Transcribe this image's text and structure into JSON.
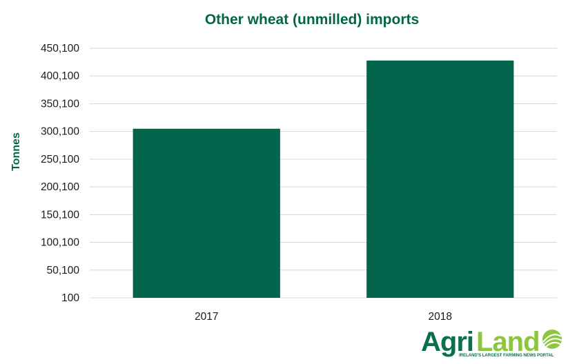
{
  "chart_data": {
    "type": "bar",
    "title": "Other wheat (unmilled) imports",
    "xlabel": "",
    "ylabel": "Tonnes",
    "categories": [
      "2017",
      "2018"
    ],
    "values": [
      305000,
      428000
    ],
    "ylim": [
      100,
      450100
    ],
    "yticks": [
      100,
      50100,
      100100,
      150100,
      200100,
      250100,
      300100,
      350100,
      400100,
      450100
    ],
    "ytick_labels": [
      "100",
      "50,100",
      "100,100",
      "150,100",
      "200,100",
      "250,100",
      "300,100",
      "350,100",
      "400,100",
      "450,100"
    ],
    "grid": true,
    "legend": "none"
  },
  "logo": {
    "text_agri": "Agri",
    "text_land": "Land",
    "tagline": "IRELAND'S LARGEST FARMING NEWS PORTAL",
    "icon": "wheat-field-icon"
  },
  "colors": {
    "bar": "#03654b",
    "title": "#03654b",
    "grid": "#c9ddd6",
    "logo_agri": "#0a6e4f",
    "logo_land": "#8cc63e"
  }
}
